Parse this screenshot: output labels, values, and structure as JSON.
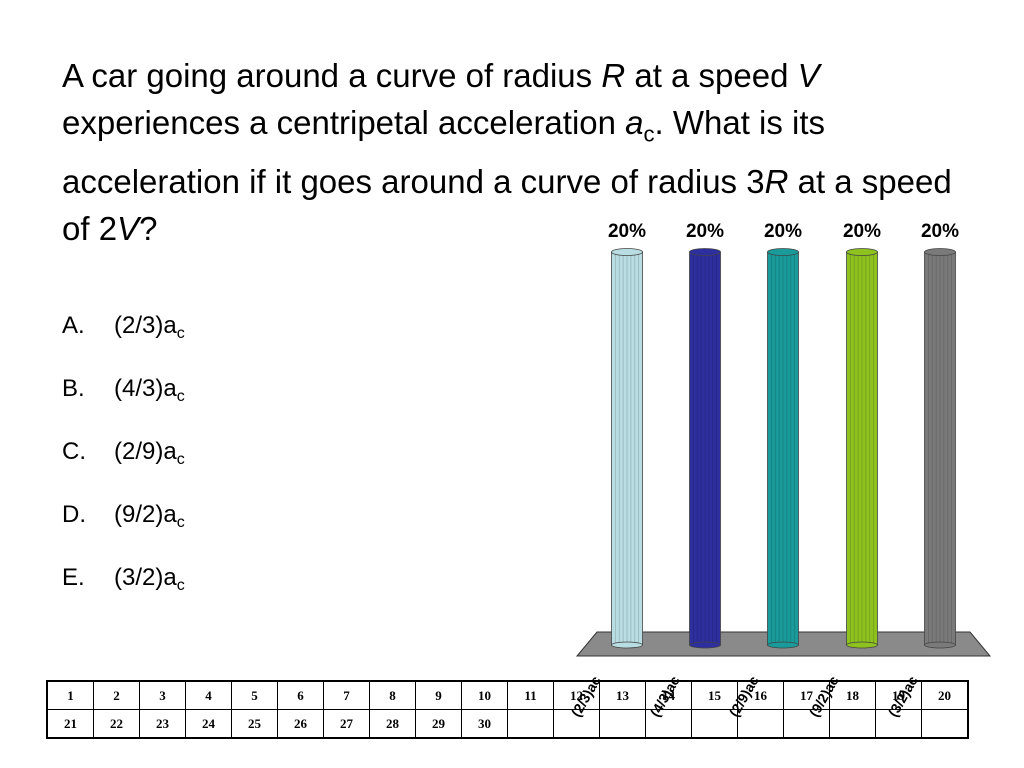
{
  "question": {
    "t1": "A car going around a curve of radius ",
    "R": "R",
    "t2": " at a speed ",
    "V": "V",
    "t3": " experiences a centripetal acceleration ",
    "a": "a",
    "c": "c",
    "t4": ".  What is its acceleration if it goes around a curve of radius 3",
    "R2": "R",
    "t5": " at a speed of 2",
    "V2": "V",
    "t6": "?"
  },
  "options": [
    {
      "letter": "A.",
      "text": "(2/3)a",
      "sub": "c"
    },
    {
      "letter": "B.",
      "text": "(4/3)a",
      "sub": "c"
    },
    {
      "letter": "C.",
      "text": "(2/9)a",
      "sub": "c"
    },
    {
      "letter": "D.",
      "text": "(9/2)a",
      "sub": "c"
    },
    {
      "letter": "E.",
      "text": "(3/2)a",
      "sub": "c"
    }
  ],
  "chart_data": {
    "type": "bar",
    "categories": [
      "(2/3)ac",
      "(4/3)ac",
      "(2/9)ac",
      "(9/2)ac",
      "(3/2)ac"
    ],
    "values": [
      20,
      20,
      20,
      20,
      20
    ],
    "value_labels": [
      "20%",
      "20%",
      "20%",
      "20%",
      "20%"
    ],
    "colors": [
      "#b8dde2",
      "#2e2f9e",
      "#1a9b9b",
      "#8dc21f",
      "#7a7a7a"
    ],
    "ylim": [
      0,
      20
    ],
    "grid": false,
    "style": "3d-cylinders"
  },
  "response_grid": {
    "row1": [
      "1",
      "2",
      "3",
      "4",
      "5",
      "6",
      "7",
      "8",
      "9",
      "10",
      "11",
      "12",
      "13",
      "14",
      "15",
      "16",
      "17",
      "18",
      "19",
      "20"
    ],
    "row2": [
      "21",
      "22",
      "23",
      "24",
      "25",
      "26",
      "27",
      "28",
      "29",
      "30",
      "",
      "",
      "",
      "",
      "",
      "",
      "",
      "",
      "",
      ""
    ]
  }
}
